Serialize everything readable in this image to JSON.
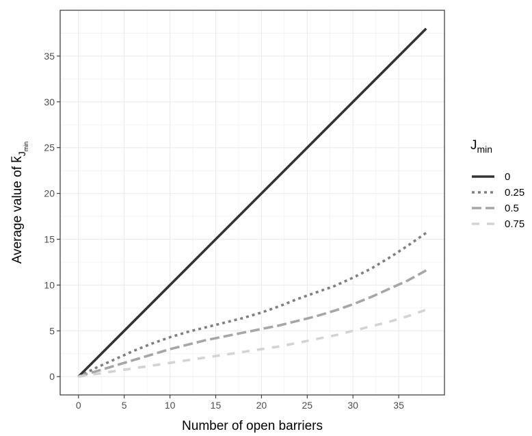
{
  "chart_data": {
    "type": "line",
    "xlabel": "Number of open barriers",
    "ylabel": {
      "prefix": "Average value of ",
      "symbol": "k",
      "sub": "J",
      "subsub": "min"
    },
    "xlim": [
      -2,
      40
    ],
    "ylim": [
      -2,
      40
    ],
    "x_ticks": [
      0,
      5,
      10,
      15,
      20,
      25,
      30,
      35
    ],
    "y_ticks": [
      0,
      5,
      10,
      15,
      20,
      25,
      30,
      35
    ],
    "grid": true,
    "legend": {
      "position": "right",
      "title_main": "J",
      "title_sub": "min"
    },
    "x": [
      0,
      2,
      4,
      6,
      8,
      10,
      12,
      14,
      16,
      18,
      20,
      22,
      24,
      26,
      28,
      30,
      32,
      34,
      36,
      38
    ],
    "series": [
      {
        "name": "0",
        "color": "#333333",
        "dash": "solid",
        "values": [
          0,
          2,
          4,
          6,
          8,
          10,
          12,
          14,
          16,
          18,
          20,
          22,
          24,
          26,
          28,
          30,
          32,
          34,
          36,
          38
        ]
      },
      {
        "name": "0.25",
        "color": "#7f7f7f",
        "dash": "dotted",
        "values": [
          0,
          1.0,
          1.9,
          2.8,
          3.6,
          4.3,
          4.9,
          5.4,
          5.9,
          6.4,
          7.0,
          7.7,
          8.5,
          9.2,
          9.9,
          10.8,
          11.8,
          13.0,
          14.3,
          15.7
        ]
      },
      {
        "name": "0.5",
        "color": "#a6a6a6",
        "dash": "longdash",
        "values": [
          0,
          0.6,
          1.2,
          1.8,
          2.4,
          3.0,
          3.5,
          4.0,
          4.4,
          4.8,
          5.2,
          5.6,
          6.1,
          6.6,
          7.2,
          7.9,
          8.7,
          9.6,
          10.5,
          11.6
        ]
      },
      {
        "name": "0.75",
        "color": "#d3d3d3",
        "dash": "dashed",
        "values": [
          0,
          0.3,
          0.6,
          0.9,
          1.2,
          1.5,
          1.8,
          2.1,
          2.4,
          2.7,
          3.0,
          3.3,
          3.7,
          4.1,
          4.5,
          5.0,
          5.5,
          6.0,
          6.6,
          7.3
        ]
      }
    ]
  }
}
